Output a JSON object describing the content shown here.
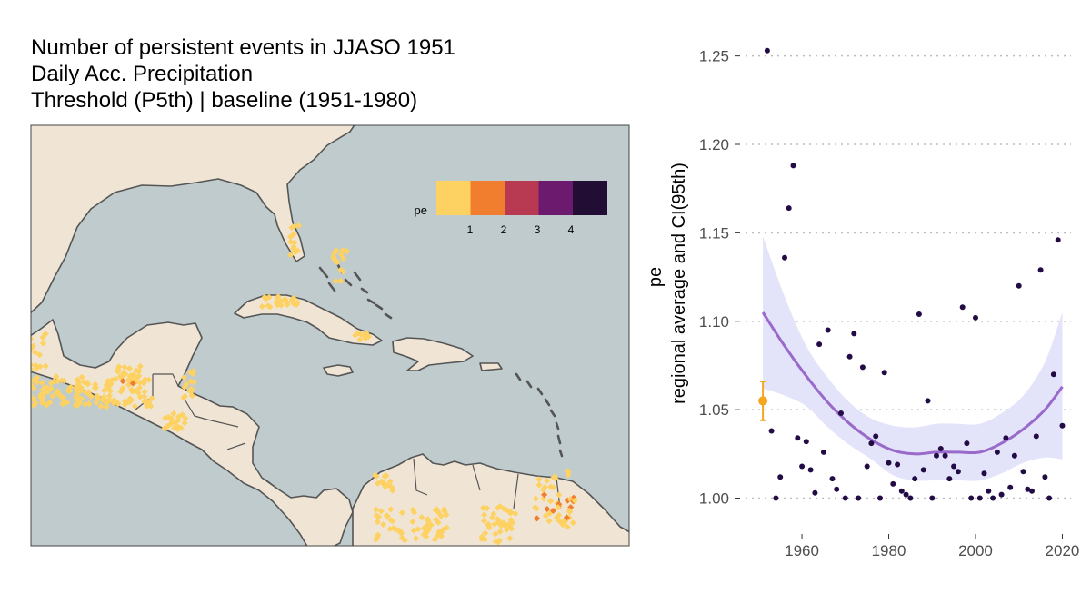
{
  "map": {
    "title_lines": [
      "Number of persistent events in JJASO 1951",
      "Daily Acc. Precipitation",
      "Threshold (P5th) | baseline (1951-1980)"
    ],
    "legend": {
      "title": "pe",
      "labels": [
        "1",
        "2",
        "3",
        "4"
      ],
      "colors": [
        "#FDD262",
        "#F07E2E",
        "#B83A52",
        "#6B1A6E",
        "#220E34"
      ]
    },
    "colors": {
      "ocean": "#BFCBCC",
      "land": "#F0E5D5",
      "border": "#555555"
    }
  },
  "chart_data": {
    "type": "scatter",
    "xlabel": "",
    "ylabel_lines": [
      "pe",
      "regional average and CI(95th)"
    ],
    "xlim": [
      1947,
      2022
    ],
    "ylim": [
      0.99,
      1.257
    ],
    "x_ticks": [
      1960,
      1980,
      2000,
      2020
    ],
    "y_ticks": [
      1.0,
      1.05,
      1.1,
      1.15,
      1.2,
      1.25
    ],
    "y_tick_labels": [
      "1.00",
      "1.05",
      "1.10",
      "1.15",
      "1.20",
      "1.25"
    ],
    "grid": "horizontal-dotted",
    "points": [
      [
        1952,
        1.253
      ],
      [
        1953,
        1.038
      ],
      [
        1954,
        1.0
      ],
      [
        1955,
        1.012
      ],
      [
        1956,
        1.136
      ],
      [
        1957,
        1.164
      ],
      [
        1958,
        1.188
      ],
      [
        1959,
        1.034
      ],
      [
        1960,
        1.018
      ],
      [
        1961,
        1.032
      ],
      [
        1962,
        1.016
      ],
      [
        1963,
        1.003
      ],
      [
        1964,
        1.087
      ],
      [
        1965,
        1.026
      ],
      [
        1966,
        1.095
      ],
      [
        1967,
        1.011
      ],
      [
        1968,
        1.005
      ],
      [
        1969,
        1.048
      ],
      [
        1970,
        1.0
      ],
      [
        1971,
        1.08
      ],
      [
        1972,
        1.093
      ],
      [
        1973,
        1.0
      ],
      [
        1974,
        1.074
      ],
      [
        1975,
        1.018
      ],
      [
        1976,
        1.031
      ],
      [
        1977,
        1.035
      ],
      [
        1978,
        1.0
      ],
      [
        1979,
        1.071
      ],
      [
        1980,
        1.02
      ],
      [
        1981,
        1.008
      ],
      [
        1982,
        1.019
      ],
      [
        1983,
        1.004
      ],
      [
        1984,
        1.002
      ],
      [
        1985,
        1.0
      ],
      [
        1986,
        1.011
      ],
      [
        1987,
        1.104
      ],
      [
        1988,
        1.016
      ],
      [
        1989,
        1.055
      ],
      [
        1990,
        1.0
      ],
      [
        1991,
        1.024
      ],
      [
        1992,
        1.028
      ],
      [
        1993,
        1.024
      ],
      [
        1994,
        1.011
      ],
      [
        1995,
        1.018
      ],
      [
        1996,
        1.015
      ],
      [
        1997,
        1.108
      ],
      [
        1998,
        1.031
      ],
      [
        1999,
        1.0
      ],
      [
        2000,
        1.102
      ],
      [
        2001,
        1.0
      ],
      [
        2002,
        1.014
      ],
      [
        2003,
        1.004
      ],
      [
        2004,
        1.0
      ],
      [
        2005,
        1.026
      ],
      [
        2006,
        1.002
      ],
      [
        2007,
        1.034
      ],
      [
        2008,
        1.006
      ],
      [
        2009,
        1.024
      ],
      [
        2010,
        1.12
      ],
      [
        2011,
        1.015
      ],
      [
        2012,
        1.005
      ],
      [
        2013,
        1.004
      ],
      [
        2014,
        1.035
      ],
      [
        2015,
        1.129
      ],
      [
        2016,
        1.012
      ],
      [
        2017,
        1.0
      ],
      [
        2018,
        1.07
      ],
      [
        2019,
        1.146
      ],
      [
        2020,
        1.041
      ]
    ],
    "smooth": {
      "x": [
        1951,
        1956,
        1961,
        1966,
        1971,
        1976,
        1981,
        1986,
        1991,
        1996,
        2001,
        2006,
        2011,
        2016,
        2020
      ],
      "y": [
        1.105,
        1.086,
        1.069,
        1.054,
        1.042,
        1.033,
        1.027,
        1.025,
        1.026,
        1.026,
        1.026,
        1.031,
        1.039,
        1.05,
        1.063
      ],
      "lower": [
        1.062,
        1.058,
        1.052,
        1.04,
        1.03,
        1.022,
        1.013,
        1.01,
        1.01,
        1.01,
        1.01,
        1.014,
        1.02,
        1.023,
        1.022
      ],
      "upper": [
        1.148,
        1.114,
        1.086,
        1.068,
        1.054,
        1.045,
        1.041,
        1.04,
        1.042,
        1.042,
        1.042,
        1.048,
        1.058,
        1.077,
        1.105
      ],
      "line_color": "#9A6ACB",
      "band_color": "#E3E3FA"
    },
    "point_color": "#230C45",
    "highlight": {
      "x": 1951,
      "y": 1.055,
      "lower": 1.044,
      "upper": 1.066,
      "color": "#F5A623"
    }
  }
}
